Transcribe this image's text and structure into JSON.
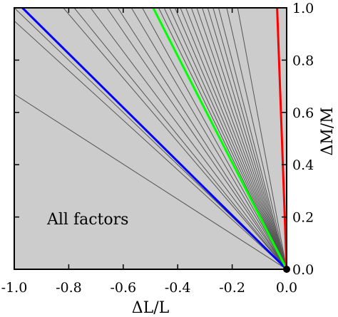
{
  "chart_data": {
    "type": "line",
    "xlabel": "ΔL/L",
    "ylabel": "ΔM/M",
    "xlim": [
      -1.0,
      0.0
    ],
    "ylim": [
      0.0,
      1.0
    ],
    "x_ticks": [
      "-1.0",
      "-0.8",
      "-0.6",
      "-0.4",
      "-0.2",
      "0.0"
    ],
    "y_ticks": [
      "0.0",
      "0.2",
      "0.4",
      "0.6",
      "0.8",
      "1.0"
    ],
    "annotation": "All factors",
    "origin_point": [
      0.0,
      0.0
    ],
    "background_color": "#cccccc",
    "series": [
      {
        "color": "#0000ff",
        "x": [
          0.0,
          -0.97
        ],
        "y": [
          0.0,
          1.0
        ]
      },
      {
        "color": "#00ff00",
        "x": [
          0.0,
          -0.49
        ],
        "y": [
          0.0,
          1.0
        ]
      },
      {
        "color": "#ff0000",
        "x": [
          0.0,
          -0.035
        ],
        "y": [
          0.0,
          1.0
        ]
      }
    ],
    "thin_lines": {
      "color": "#555555",
      "ends": [
        [
          -1.0,
          0.67
        ],
        [
          -1.0,
          0.95
        ],
        [
          -1.0,
          1.0
        ],
        [
          -0.82,
          1.0
        ],
        [
          -0.78,
          1.0
        ],
        [
          -0.72,
          1.0
        ],
        [
          -0.66,
          1.0
        ],
        [
          -0.62,
          1.0
        ],
        [
          -0.57,
          1.0
        ],
        [
          -0.53,
          1.0
        ],
        [
          -0.47,
          1.0
        ],
        [
          -0.45,
          1.0
        ],
        [
          -0.43,
          1.0
        ],
        [
          -0.41,
          1.0
        ],
        [
          -0.39,
          1.0
        ],
        [
          -0.37,
          1.0
        ],
        [
          -0.35,
          1.0
        ],
        [
          -0.33,
          1.0
        ],
        [
          -0.31,
          1.0
        ],
        [
          -0.29,
          1.0
        ],
        [
          -0.27,
          1.0
        ],
        [
          -0.25,
          1.0
        ],
        [
          -0.22,
          1.0
        ],
        [
          -0.18,
          1.0
        ]
      ]
    }
  }
}
